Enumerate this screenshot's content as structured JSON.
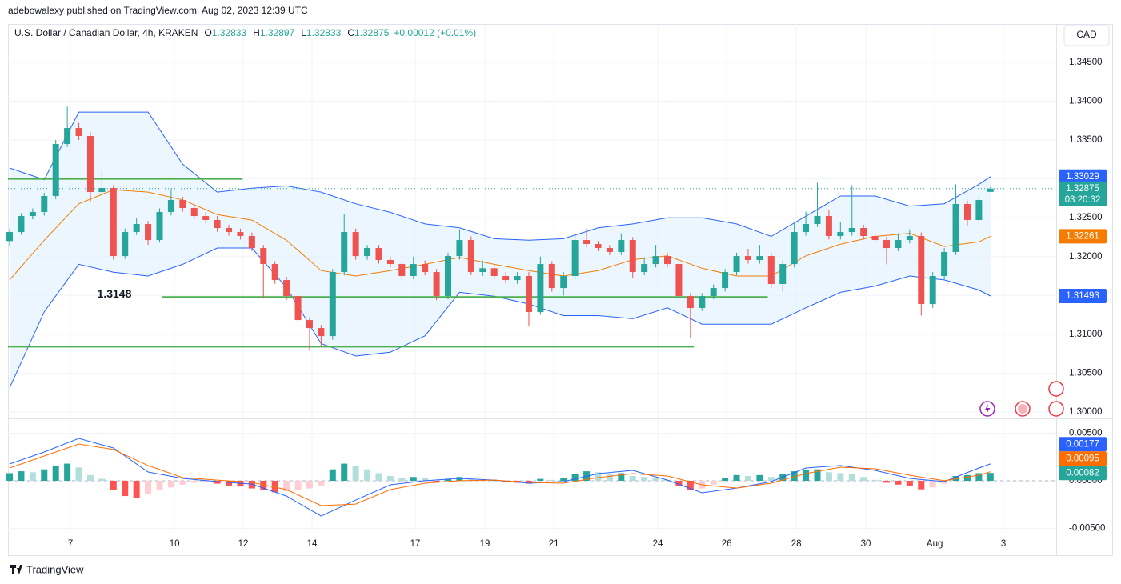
{
  "header": {
    "published": "adebowalexy published on TradingView.com, Aug 02, 2023 12:39 UTC",
    "symbol": "U.S. Dollar / Canadian Dollar, 4h, KRAKEN",
    "ohlc_labels": [
      "O",
      "H",
      "L",
      "C"
    ],
    "change": "+0.00012 (+0.01%)",
    "currency": "CAD",
    "countdown": "03:20:32",
    "brand": "TradingView"
  },
  "chart_data": [
    {
      "type": "candlestick",
      "up_color": "#26a69a",
      "down_color": "#ef5350",
      "xlim": [
        -0.14,
        90.7
      ],
      "ylim": [
        1.29917,
        1.34994
      ],
      "xticks": [
        {
          "value": 5.27,
          "label": "7"
        },
        {
          "value": 14.29,
          "label": "10"
        },
        {
          "value": 20.25,
          "label": "12"
        },
        {
          "value": 26.21,
          "label": "14"
        },
        {
          "value": 35.16,
          "label": "17"
        },
        {
          "value": 41.19,
          "label": "19"
        },
        {
          "value": 47.16,
          "label": "21"
        },
        {
          "value": 56.17,
          "label": "24"
        },
        {
          "value": 62.14,
          "label": "26"
        },
        {
          "value": 68.17,
          "label": "28"
        },
        {
          "value": 74.2,
          "label": "30"
        },
        {
          "value": 80.17,
          "label": "Aug"
        },
        {
          "value": 86.13,
          "label": "3"
        }
      ],
      "yticks": [
        {
          "value": 1.3,
          "label": "1.30000"
        },
        {
          "value": 1.305,
          "label": "1.30500"
        },
        {
          "value": 1.31,
          "label": "1.31000"
        },
        {
          "value": 1.315,
          "label": "1.31500"
        },
        {
          "value": 1.32,
          "label": "1.32000"
        },
        {
          "value": 1.325,
          "label": "1.32500"
        },
        {
          "value": 1.33,
          "label": "1.33000"
        },
        {
          "value": 1.335,
          "label": "1.33500"
        },
        {
          "value": 1.34,
          "label": "1.34000"
        },
        {
          "value": 1.345,
          "label": "1.34500"
        }
      ],
      "grid": true,
      "open": [
        1.322,
        1.32316,
        1.32522,
        1.32574,
        1.3278,
        1.33449,
        1.33655,
        1.33552,
        1.32831,
        1.32883,
        1.32007,
        1.32316,
        1.32419,
        1.32213,
        1.32574,
        1.32728,
        1.32625,
        1.32522,
        1.32471,
        1.32368,
        1.32316,
        1.32265,
        1.3211,
        1.31904,
        1.31698,
        1.31492,
        1.31183,
        1.3108,
        1.30977,
        1.31801,
        1.32316,
        1.32007,
        1.3211,
        1.31956,
        1.31904,
        1.3175,
        1.31904,
        1.31801,
        1.31492,
        1.32007,
        1.32213,
        1.31801,
        1.3185,
        1.3175,
        1.31698,
        1.3175,
        1.31286,
        1.31904,
        1.31595,
        1.3175,
        1.32213,
        1.32162,
        1.3211,
        1.32059,
        1.32213,
        1.31801,
        1.31904,
        1.32007,
        1.31904,
        1.31492,
        1.31338,
        1.31492,
        1.31595,
        1.31801,
        1.32007,
        1.31956,
        1.32007,
        1.31647,
        1.31904,
        1.32316,
        1.32419,
        1.32522,
        1.32265,
        1.32316,
        1.32368,
        1.32265,
        1.32213,
        1.3211,
        1.32213,
        1.32265,
        1.31389,
        1.3175,
        1.32059,
        1.32677,
        1.32471,
        1.32833
      ],
      "high": [
        1.3236,
        1.3256,
        1.3262,
        1.3282,
        1.335,
        1.3393,
        1.3372,
        1.336,
        1.3312,
        1.3292,
        1.3236,
        1.325,
        1.3246,
        1.3262,
        1.3287,
        1.3277,
        1.3267,
        1.3257,
        1.3252,
        1.3241,
        1.3236,
        1.3231,
        1.3215,
        1.3194,
        1.3174,
        1.3153,
        1.3122,
        1.3112,
        1.3184,
        1.3255,
        1.3236,
        1.3215,
        1.3215,
        1.32,
        1.3194,
        1.32,
        1.3195,
        1.3184,
        1.3205,
        1.3235,
        1.3226,
        1.3195,
        1.3189,
        1.318,
        1.318,
        1.318,
        1.32,
        1.3194,
        1.318,
        1.3227,
        1.3236,
        1.322,
        1.3215,
        1.323,
        1.3225,
        1.3199,
        1.3215,
        1.3205,
        1.3195,
        1.3153,
        1.3153,
        1.3164,
        1.3184,
        1.3205,
        1.321,
        1.3215,
        1.3205,
        1.3195,
        1.3245,
        1.3258,
        1.3295,
        1.326,
        1.3245,
        1.3292,
        1.3241,
        1.3231,
        1.3226,
        1.323,
        1.3235,
        1.3231,
        1.318,
        1.3211,
        1.3293,
        1.3272,
        1.3278,
        1.32897
      ],
      "low": [
        1.3214,
        1.3228,
        1.3248,
        1.3253,
        1.3274,
        1.3341,
        1.335,
        1.327,
        1.3278,
        1.3196,
        1.3197,
        1.3228,
        1.3215,
        1.3218,
        1.3253,
        1.3258,
        1.3248,
        1.3243,
        1.3232,
        1.3227,
        1.3222,
        1.3207,
        1.3146,
        1.3165,
        1.3144,
        1.3112,
        1.3079,
        1.3085,
        1.3093,
        1.3176,
        1.3196,
        1.3196,
        1.3191,
        1.3186,
        1.317,
        1.3171,
        1.3176,
        1.3144,
        1.3145,
        1.3196,
        1.3176,
        1.3175,
        1.3171,
        1.3165,
        1.3165,
        1.311,
        1.3125,
        1.3155,
        1.315,
        1.3171,
        1.3212,
        1.3207,
        1.3202,
        1.3202,
        1.3172,
        1.3176,
        1.3186,
        1.3186,
        1.3145,
        1.3095,
        1.313,
        1.3145,
        1.3155,
        1.3176,
        1.3191,
        1.3191,
        1.316,
        1.3155,
        1.3186,
        1.3227,
        1.3238,
        1.3222,
        1.3222,
        1.3227,
        1.3222,
        1.3217,
        1.319,
        1.3207,
        1.3217,
        1.3124,
        1.3134,
        1.3171,
        1.3202,
        1.324,
        1.3243,
        1.32833
      ],
      "close": [
        1.32316,
        1.32522,
        1.32574,
        1.3278,
        1.33449,
        1.33655,
        1.33552,
        1.32831,
        1.32883,
        1.32007,
        1.32316,
        1.32419,
        1.32213,
        1.32574,
        1.32728,
        1.32625,
        1.32522,
        1.32471,
        1.32368,
        1.32316,
        1.32265,
        1.3211,
        1.31904,
        1.31698,
        1.31492,
        1.31183,
        1.3108,
        1.30977,
        1.31801,
        1.32316,
        1.32007,
        1.3211,
        1.31956,
        1.31904,
        1.3175,
        1.31904,
        1.31801,
        1.31492,
        1.32007,
        1.32213,
        1.31801,
        1.3185,
        1.3175,
        1.31698,
        1.3175,
        1.31286,
        1.31904,
        1.31595,
        1.3175,
        1.32213,
        1.32162,
        1.3211,
        1.32059,
        1.32213,
        1.31801,
        1.31904,
        1.32007,
        1.31904,
        1.31492,
        1.31338,
        1.31492,
        1.31595,
        1.31801,
        1.32007,
        1.31956,
        1.32007,
        1.31647,
        1.31904,
        1.32316,
        1.32419,
        1.32522,
        1.32265,
        1.32316,
        1.32368,
        1.32265,
        1.32213,
        1.3211,
        1.32213,
        1.32265,
        1.31389,
        1.3175,
        1.32059,
        1.32677,
        1.32471,
        1.32728,
        1.32875
      ],
      "band_fill": "#e3f2fd",
      "overlays": [
        {
          "color": "#2962ff",
          "x": [
            0,
            3,
            6,
            9,
            12,
            15,
            18,
            21,
            24,
            27,
            30,
            33,
            36,
            39,
            42,
            45,
            48,
            51,
            54,
            57,
            60,
            63,
            66,
            69,
            72,
            75,
            78,
            81,
            84,
            85
          ],
          "values": [
            1.3314,
            1.3299,
            1.3386,
            1.3386,
            1.3386,
            1.3319,
            1.3283,
            1.3288,
            1.3291,
            1.3283,
            1.3268,
            1.3257,
            1.3242,
            1.3237,
            1.3223,
            1.3221,
            1.3223,
            1.3237,
            1.3242,
            1.325,
            1.325,
            1.3242,
            1.3226,
            1.3252,
            1.3278,
            1.3278,
            1.3265,
            1.3268,
            1.3293,
            1.33029
          ]
        },
        {
          "color": "#f57c00",
          "x": [
            0,
            3,
            6,
            9,
            12,
            15,
            18,
            21,
            24,
            27,
            30,
            33,
            36,
            39,
            42,
            45,
            48,
            51,
            54,
            57,
            60,
            63,
            66,
            69,
            72,
            75,
            78,
            81,
            84,
            85
          ],
          "values": [
            1.317,
            1.3221,
            1.3268,
            1.3286,
            1.3283,
            1.3273,
            1.3254,
            1.3247,
            1.3221,
            1.3182,
            1.3175,
            1.3182,
            1.319,
            1.3199,
            1.319,
            1.3182,
            1.3175,
            1.3182,
            1.3196,
            1.3201,
            1.3185,
            1.3175,
            1.3175,
            1.3201,
            1.3216,
            1.3226,
            1.323,
            1.3213,
            1.3219,
            1.32261
          ]
        },
        {
          "color": "#2962ff",
          "x": [
            0,
            3,
            6,
            9,
            12,
            15,
            18,
            21,
            24,
            27,
            30,
            33,
            36,
            39,
            42,
            45,
            48,
            51,
            54,
            57,
            60,
            63,
            66,
            69,
            72,
            75,
            78,
            81,
            84,
            85
          ],
          "values": [
            1.3031,
            1.3129,
            1.319,
            1.318,
            1.3175,
            1.319,
            1.3211,
            1.3211,
            1.316,
            1.3088,
            1.3072,
            1.3077,
            1.3098,
            1.3154,
            1.3149,
            1.3139,
            1.3124,
            1.3124,
            1.312,
            1.3134,
            1.3113,
            1.3113,
            1.3113,
            1.3134,
            1.3154,
            1.3162,
            1.3175,
            1.317,
            1.3157,
            1.31493
          ]
        }
      ],
      "levels": [
        {
          "value": 1.33,
          "x": [
            -0.14,
            20.2
          ],
          "color": "#4caf50"
        },
        {
          "value": 1.3148,
          "x": [
            13.2,
            65.7
          ],
          "color": "#4caf50",
          "label": "1.3148"
        },
        {
          "value": 1.3084,
          "x": [
            -0.14,
            59.3
          ],
          "color": "#4caf50"
        }
      ]
    },
    {
      "type": "macd",
      "ylim": [
        -0.00512,
        0.00638
      ],
      "yticks": [
        {
          "value": -0.005,
          "label": "-0.00500"
        },
        {
          "value": 0,
          "label": "0.00000"
        },
        {
          "value": 0.005,
          "label": "0.00500"
        }
      ],
      "hist_colors": {
        "rise_up": "#26a69a",
        "fall_up": "#b2dfdb",
        "fall_down": "#ff5252",
        "rise_down": "#ffcdd2"
      },
      "histogram": [
        0.0008,
        0.001,
        0.0009,
        0.0012,
        0.0016,
        0.0018,
        0.0014,
        0.0006,
        0.0002,
        -0.001,
        -0.0016,
        -0.0018,
        -0.0014,
        -0.001,
        -0.0007,
        -0.0004,
        -0.0002,
        -0.0001,
        -0.0003,
        -0.0005,
        -0.0006,
        -0.0008,
        -0.001,
        -0.0012,
        -0.0011,
        -0.001,
        -0.0008,
        -0.0005,
        0.0012,
        0.0018,
        0.0016,
        0.0012,
        0.0008,
        0.0005,
        0.0003,
        0.0004,
        0.0003,
        -0.0001,
        0.0002,
        0.0004,
        0.0002,
        0.0001,
        0.0001,
        -0.0001,
        -0.0002,
        -0.0003,
        0.0002,
        0.0001,
        0.0003,
        0.0007,
        0.001,
        0.0009,
        0.0007,
        0.0008,
        0.0005,
        0.0004,
        0.0003,
        0.0001,
        -0.0005,
        -0.001,
        -0.0008,
        -0.0004,
        0.0003,
        0.0006,
        0.0005,
        0.0006,
        0.0004,
        0.0007,
        0.001,
        0.0011,
        0.0012,
        0.0009,
        0.0008,
        0.0007,
        0.0004,
        0.0001,
        -0.0002,
        -0.0004,
        -0.0005,
        -0.0009,
        -0.0007,
        -0.0003,
        0.0005,
        0.0006,
        0.0008,
        0.00082
      ],
      "lines": [
        {
          "color": "#2962ff",
          "x": [
            0,
            3,
            6,
            9,
            12,
            15,
            18,
            21,
            24,
            27,
            30,
            33,
            36,
            39,
            42,
            45,
            48,
            51,
            54,
            57,
            60,
            63,
            66,
            69,
            72,
            75,
            78,
            81,
            84,
            85
          ],
          "values": [
            0.00176,
            0.00302,
            0.00445,
            0.00344,
            0.00092,
            0.00025,
            -8e-05,
            -0.00034,
            -0.0016,
            -0.0037,
            -0.00202,
            -0.00042,
            1e-05,
            0.00025,
            8e-05,
            -0.00025,
            -8e-05,
            0.00076,
            0.00109,
            8e-05,
            -0.00126,
            -0.00076,
            -8e-05,
            0.00134,
            0.0016,
            0.00109,
            0.00025,
            -8e-05,
            0.00134,
            0.00177
          ]
        },
        {
          "color": "#ff6d00",
          "x": [
            0,
            3,
            6,
            9,
            12,
            15,
            18,
            21,
            24,
            27,
            30,
            33,
            36,
            39,
            42,
            45,
            48,
            51,
            54,
            57,
            60,
            63,
            66,
            69,
            72,
            75,
            78,
            81,
            84,
            85
          ],
          "values": [
            0.00134,
            0.0026,
            0.00386,
            0.00328,
            0.0016,
            0.00034,
            8e-05,
            -0.00017,
            -0.00092,
            -0.0026,
            -0.00244,
            -0.00092,
            -0.00025,
            1e-05,
            8e-05,
            -0.00017,
            -0.00025,
            0.00034,
            0.00076,
            0.0005,
            -0.00042,
            -0.00076,
            -0.00025,
            0.00076,
            0.00143,
            0.00126,
            0.00059,
            1e-05,
            0.00059,
            0.00095
          ]
        }
      ]
    }
  ]
}
